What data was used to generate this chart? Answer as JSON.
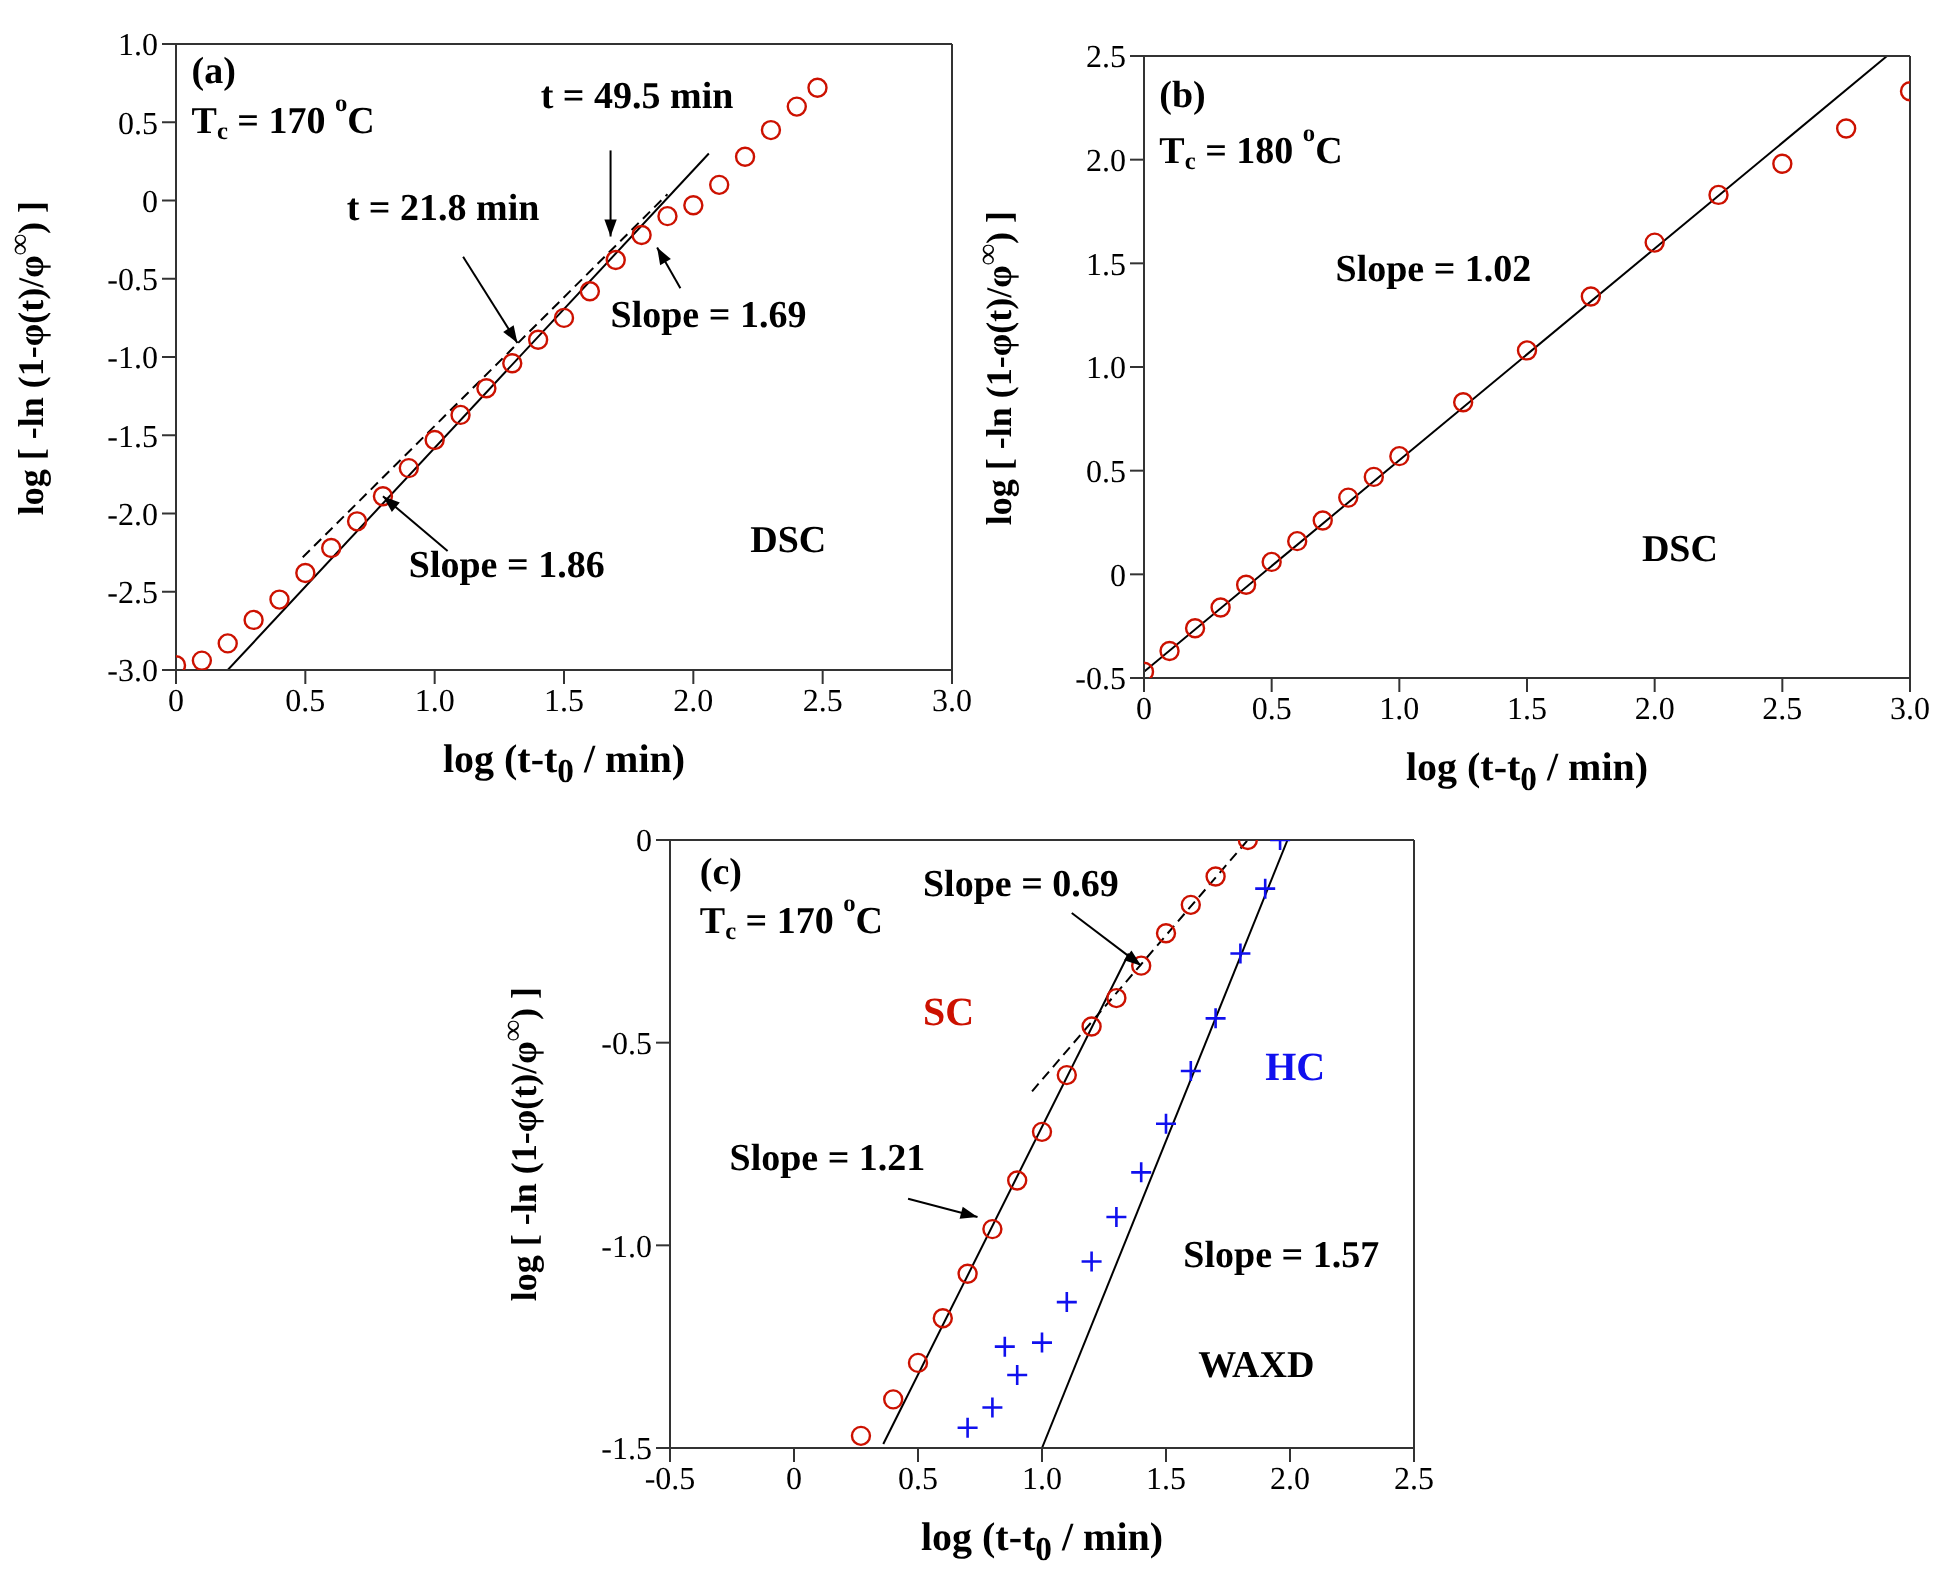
{
  "chart_data": [
    {
      "type": "scatter",
      "xlabel": "log (t-t$_{0}$ / min)",
      "ylabel": "log [ -ln (1-φ(t)/φ$^{∞}$) ]",
      "xlim": [
        0,
        3
      ],
      "ylim": [
        -3,
        1
      ],
      "xticks": [
        0,
        0.5,
        {
          "value": 1,
          "label": "1.0"
        },
        1.5,
        {
          "value": 2,
          "label": "2.0"
        },
        2.5,
        {
          "value": 3,
          "label": "3.0"
        }
      ],
      "yticks": [
        {
          "value": 1,
          "label": "1.0"
        },
        0.5,
        0,
        -0.5,
        {
          "value": -1,
          "label": "-1.0"
        },
        -1.5,
        {
          "value": -2,
          "label": "-2.0"
        },
        -2.5,
        {
          "value": -3,
          "label": "-3.0"
        }
      ],
      "series": [
        {
          "color": "#cc1100",
          "marker": "circle",
          "x": [
            0,
            0.1,
            0.2,
            0.3,
            0.4,
            0.5,
            0.6,
            0.7,
            0.8,
            0.9,
            1.0,
            1.1,
            1.2,
            1.3,
            1.4,
            1.5,
            1.6,
            1.7,
            1.8,
            1.9,
            2.0,
            2.1,
            2.2,
            2.3,
            2.4,
            2.48
          ],
          "values": [
            -2.97,
            -2.94,
            -2.83,
            -2.68,
            -2.55,
            -2.38,
            -2.22,
            -2.05,
            -1.89,
            -1.71,
            -1.53,
            -1.37,
            -1.2,
            -1.04,
            -0.89,
            -0.75,
            -0.58,
            -0.38,
            -0.22,
            -0.1,
            -0.03,
            0.1,
            0.28,
            0.45,
            0.6,
            0.72
          ]
        },
        {
          "type": "line",
          "color": "#000000",
          "marker": "none",
          "line_style": "solid",
          "x": [
            0.2,
            2.06
          ],
          "values": [
            -3.0,
            0.3
          ]
        },
        {
          "type": "line",
          "color": "#000000",
          "marker": "none",
          "line_style": "dashed",
          "x": [
            0.49,
            1.9
          ],
          "values": [
            -2.28,
            0.04
          ]
        }
      ],
      "annotations": [
        "(a)",
        "T$_{c}$ = 170 $^{o}$C",
        {
          "text": "t = 49.5 min",
          "x": 1.68,
          "y": -0.23
        },
        {
          "text": "t = 21.8 min",
          "x": 1.32,
          "y": -0.91
        },
        {
          "text": "Slope = 1.69",
          "x": 1.86,
          "y": -0.3
        },
        {
          "text": "Slope = 1.86",
          "x": 0.8,
          "y": -1.89
        },
        "DSC"
      ]
    },
    {
      "type": "scatter",
      "xlabel": "log (t-t$_{0}$ / min)",
      "ylabel": "log [ -ln (1-φ(t)/φ$^{∞}$) ]",
      "xlim": [
        0,
        3
      ],
      "ylim": [
        -0.5,
        2.5
      ],
      "xticks": [
        0,
        0.5,
        {
          "value": 1,
          "label": "1.0"
        },
        1.5,
        {
          "value": 2,
          "label": "2.0"
        },
        2.5,
        {
          "value": 3,
          "label": "3.0"
        }
      ],
      "yticks": [
        -0.5,
        0,
        0.5,
        {
          "value": 1,
          "label": "1.0"
        },
        1.5,
        {
          "value": 2,
          "label": "2.0"
        },
        2.5
      ],
      "series": [
        {
          "color": "#cc1100",
          "marker": "circle",
          "x": [
            0,
            0.1,
            0.2,
            0.3,
            0.4,
            0.5,
            0.6,
            0.7,
            0.8,
            0.9,
            1.0,
            1.25,
            1.5,
            1.75,
            2.0,
            2.25,
            2.5,
            2.75,
            3.0
          ],
          "values": [
            -0.47,
            -0.37,
            -0.26,
            -0.16,
            -0.05,
            0.06,
            0.16,
            0.26,
            0.37,
            0.47,
            0.57,
            0.83,
            1.08,
            1.34,
            1.6,
            1.83,
            1.98,
            2.15,
            2.33
          ]
        },
        {
          "type": "line",
          "color": "#000000",
          "marker": "none",
          "line_style": "solid",
          "x": [
            0,
            2.91
          ],
          "values": [
            -0.47,
            2.5
          ]
        }
      ],
      "annotations": [
        "(b)",
        "T$_{c}$ = 180 $^{o}$C",
        "Slope = 1.02",
        "DSC"
      ]
    },
    {
      "type": "scatter",
      "xlabel": "log (t-t$_{0}$ / min)",
      "ylabel": "log [ -ln (1-φ(t)/φ$^{∞}$) ]",
      "xlim": [
        -0.5,
        2.5
      ],
      "ylim": [
        -1.5,
        0
      ],
      "xticks": [
        -0.5,
        0,
        0.5,
        {
          "value": 1,
          "label": "1.0"
        },
        1.5,
        {
          "value": 2,
          "label": "2.0"
        },
        2.5
      ],
      "yticks": [
        0,
        -0.5,
        {
          "value": -1,
          "label": "-1.0"
        },
        -1.5
      ],
      "series": [
        {
          "name": "SC",
          "color": "#cc1100",
          "marker": "circle",
          "x": [
            0.27,
            0.4,
            0.5,
            0.6,
            0.7,
            0.8,
            0.9,
            1.0,
            1.1,
            1.2,
            1.3,
            1.4,
            1.5,
            1.6,
            1.7,
            1.83
          ],
          "values": [
            -1.47,
            -1.38,
            -1.29,
            -1.18,
            -1.07,
            -0.96,
            -0.84,
            -0.72,
            -0.58,
            -0.46,
            -0.39,
            -0.31,
            -0.23,
            -0.16,
            -0.09,
            0
          ]
        },
        {
          "name": "HC",
          "color": "#1010ee",
          "marker": "cross",
          "x": [
            0.7,
            0.8,
            0.85,
            0.9,
            1.0,
            1.1,
            1.2,
            1.3,
            1.4,
            1.5,
            1.6,
            1.7,
            1.8,
            1.9,
            1.96
          ],
          "values": [
            -1.45,
            -1.4,
            -1.25,
            -1.32,
            -1.24,
            -1.14,
            -1.04,
            -0.93,
            -0.82,
            -0.7,
            -0.57,
            -0.44,
            -0.28,
            -0.12,
            0
          ]
        },
        {
          "type": "line",
          "color": "#000000",
          "marker": "none",
          "line_style": "solid",
          "x": [
            0.36,
            1.35
          ],
          "values": [
            -1.49,
            -0.28
          ]
        },
        {
          "type": "line",
          "color": "#000000",
          "marker": "none",
          "line_style": "dashed",
          "x": [
            0.96,
            1.83
          ],
          "values": [
            -0.62,
            0
          ]
        },
        {
          "type": "line",
          "color": "#000000",
          "marker": "none",
          "line_style": "solid",
          "x": [
            1.0,
            1.99
          ],
          "values": [
            -1.5,
            0
          ]
        }
      ],
      "annotations": [
        "(c)",
        "T$_{c}$ = 170 $^{o}$C",
        {
          "text": "Slope = 0.69",
          "x": 1.4,
          "y": -0.31
        },
        {
          "text": "Slope = 1.21",
          "x": 0.74,
          "y": -0.93
        },
        "Slope = 1.57",
        "WAXD"
      ]
    }
  ]
}
